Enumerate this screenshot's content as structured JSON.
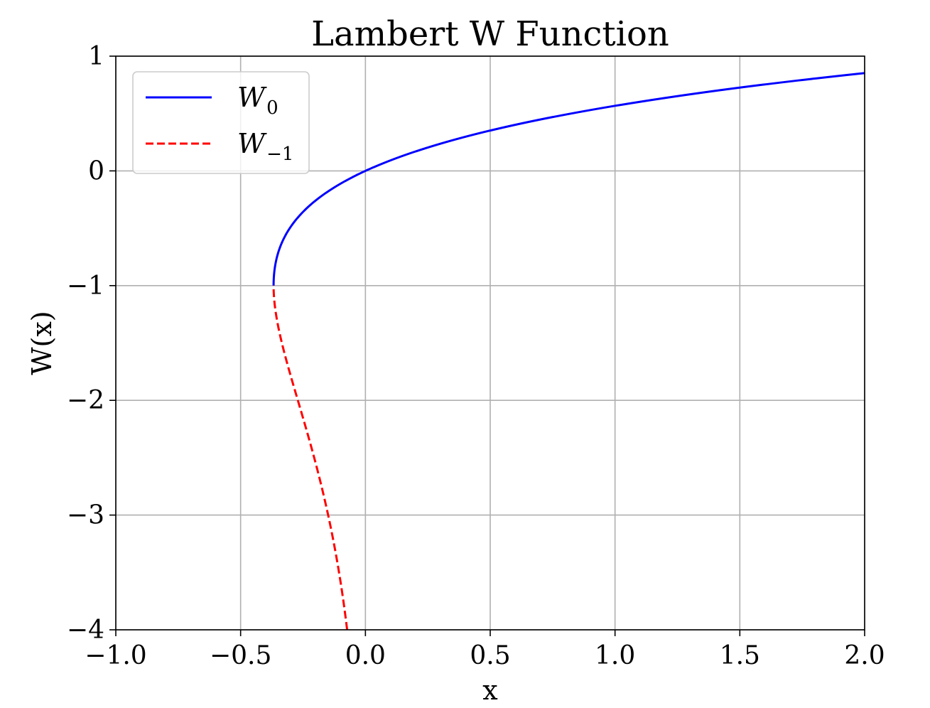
{
  "chart_data": {
    "type": "line",
    "title": "Lambert W Function",
    "xlabel": "x",
    "ylabel": "W(x)",
    "xlim": [
      -1.0,
      2.0
    ],
    "ylim": [
      -4,
      1
    ],
    "grid": true,
    "legend_position": "top-left",
    "xticks": [
      -1.0,
      -0.5,
      0.0,
      0.5,
      1.0,
      1.5,
      2.0
    ],
    "xtick_labels": [
      "−1.0",
      "−0.5",
      "0.0",
      "0.5",
      "1.0",
      "1.5",
      "2.0"
    ],
    "yticks": [
      1,
      0,
      -1,
      -2,
      -3,
      -4
    ],
    "ytick_labels": [
      "1",
      "0",
      "−1",
      "−2",
      "−3",
      "−4"
    ],
    "series": [
      {
        "name": "W₀",
        "legend_main": "W",
        "legend_sub": "0",
        "color": "#0000ff",
        "dash": "solid",
        "function": "lambertw_branch_0",
        "w_range": [
          -1,
          0.853
        ]
      },
      {
        "name": "W₋₁",
        "legend_main": "W",
        "legend_sub": "−1",
        "color": "#ff0000",
        "dash": "dashed",
        "function": "lambertw_branch_-1",
        "w_range": [
          -4,
          -1
        ]
      }
    ]
  }
}
